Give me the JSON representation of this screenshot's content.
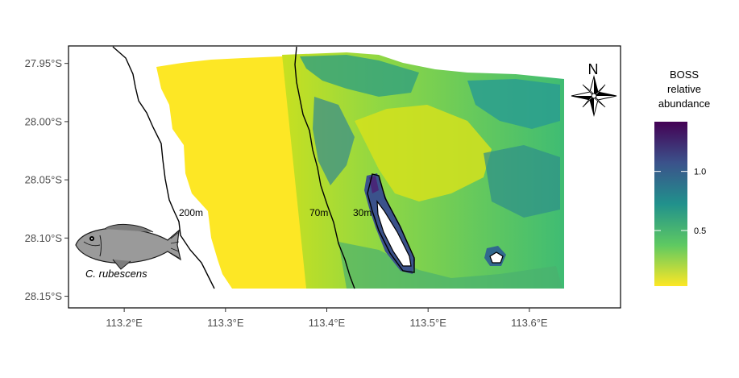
{
  "map": {
    "x_axis": {
      "ticks": [
        {
          "value": 113.2,
          "label": "113.2°E"
        },
        {
          "value": 113.3,
          "label": "113.3°E"
        },
        {
          "value": 113.4,
          "label": "113.4°E"
        },
        {
          "value": 113.5,
          "label": "113.5°E"
        },
        {
          "value": 113.6,
          "label": "113.6°E"
        }
      ]
    },
    "y_axis": {
      "ticks": [
        {
          "value": -27.95,
          "label": "27.95°S"
        },
        {
          "value": -28.0,
          "label": "28.00°S"
        },
        {
          "value": -28.05,
          "label": "28.05°S"
        },
        {
          "value": -28.1,
          "label": "28.10°S"
        },
        {
          "value": -28.15,
          "label": "28.15°S"
        }
      ]
    },
    "contour_labels": {
      "c200": "200m",
      "c70": "70m",
      "c30": "30m"
    },
    "species_label": "C. rubescens",
    "north_label": "N",
    "colors": {
      "yellow": "#fde725",
      "green": "#5ec962",
      "teal": "#21918c",
      "blue": "#3b528b",
      "purple": "#440154",
      "frame": "#000000",
      "island_fill": "#ffffff"
    }
  },
  "legend": {
    "title_lines": [
      "BOSS",
      "relative",
      "abundance"
    ],
    "ticks": [
      {
        "value": 1.0,
        "label": "1.0"
      },
      {
        "value": 0.5,
        "label": "0.5"
      }
    ],
    "range": [
      0.03,
      1.42
    ]
  },
  "chart_data": {
    "type": "heatmap",
    "title": "",
    "xlabel": "",
    "ylabel": "",
    "xlim": [
      113.145,
      113.69
    ],
    "ylim": [
      -28.16,
      -27.935
    ],
    "colorbar_title": "BOSS relative abundance",
    "colorbar_range": [
      0.03,
      1.42
    ],
    "colorbar_ticks": [
      0.5,
      1.0
    ],
    "colorscale": "viridis (reversed: low = yellow, high = purple)",
    "x_ticks": [
      "113.2°E",
      "113.3°E",
      "113.4°E",
      "113.5°E",
      "113.6°E"
    ],
    "y_ticks": [
      "27.95°S",
      "28.00°S",
      "28.05°S",
      "28.10°S",
      "28.15°S"
    ],
    "contours": [
      "200m",
      "70m",
      "30m"
    ],
    "annotations": [
      "C. rubescens",
      "N"
    ]
  }
}
